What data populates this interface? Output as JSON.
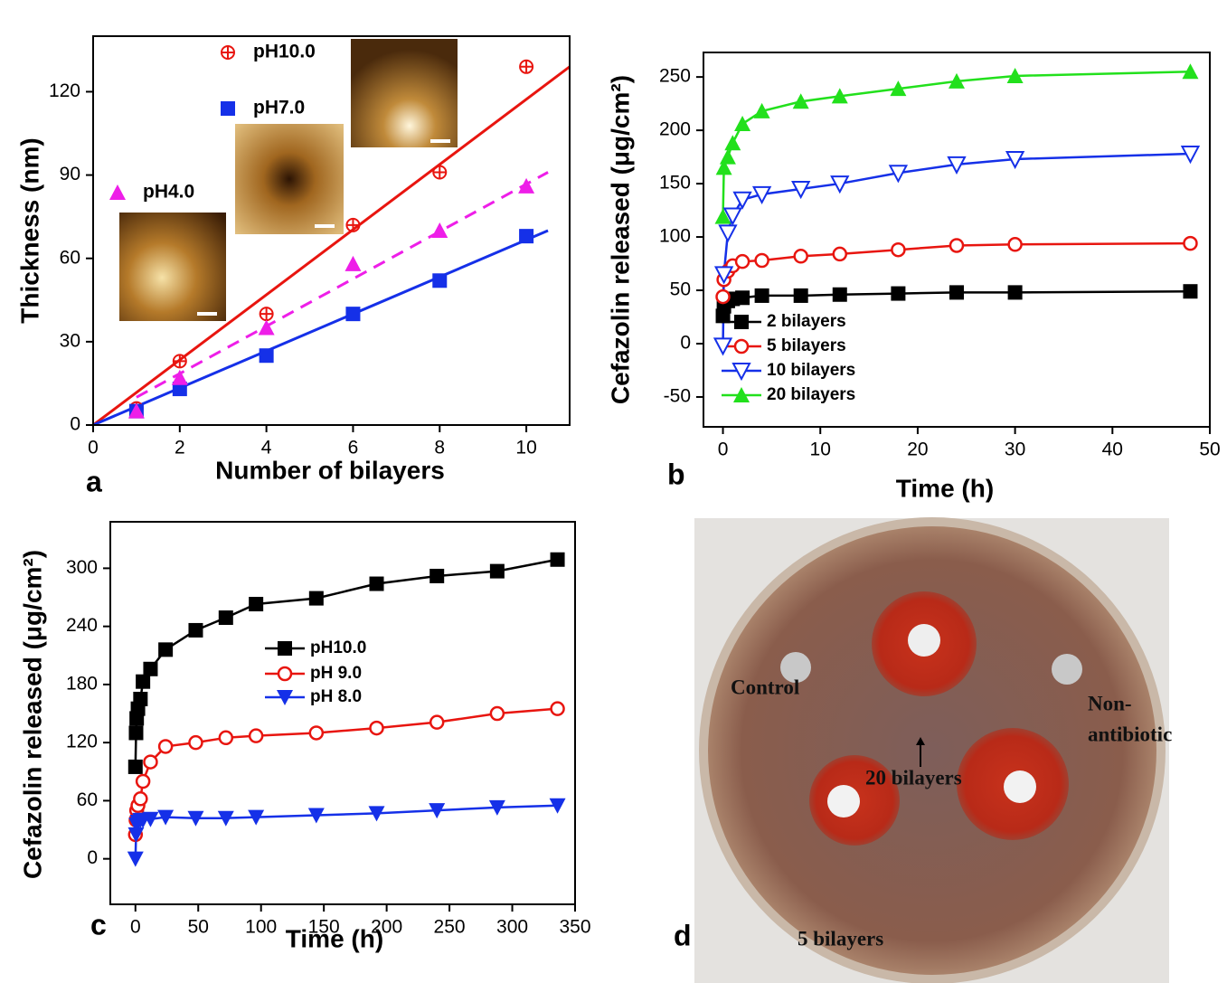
{
  "chart_data": [
    {
      "type": "scatter",
      "panel_label": "a",
      "x_label": "Number of bilayers",
      "y_label": "Thickness (nm)",
      "x": [
        1,
        2,
        4,
        6,
        8,
        10
      ],
      "xlim": [
        0,
        11
      ],
      "xticks": [
        0,
        2,
        4,
        6,
        8,
        10
      ],
      "ylim": [
        0,
        140
      ],
      "yticks": [
        0,
        30,
        60,
        90,
        120
      ],
      "series": [
        {
          "name": "pH10.0",
          "color": "#e8150f",
          "marker": "circle-cross",
          "values": [
            6,
            23,
            40,
            72,
            91,
            129
          ],
          "fit": {
            "x": [
              0,
              11
            ],
            "values": [
              0,
              129
            ],
            "dash": false
          }
        },
        {
          "name": "pH7.0",
          "color": "#1530e8",
          "marker": "square",
          "values": [
            5,
            13,
            25,
            40,
            52,
            68
          ],
          "fit": {
            "x": [
              0,
              10.5
            ],
            "values": [
              0,
              70
            ],
            "dash": false
          }
        },
        {
          "name": "pH4.0",
          "color": "#ee1ee8",
          "marker": "triangle",
          "values": [
            5,
            17,
            35,
            58,
            70,
            86
          ],
          "fit": {
            "x": [
              1,
              10.5
            ],
            "values": [
              10,
              91
            ],
            "dash": true
          }
        }
      ]
    },
    {
      "type": "line",
      "panel_label": "b",
      "x_label": "Time (h)",
      "y_label": "Cefazolin released (μg/cm²)",
      "x": [
        0,
        0.1,
        0.5,
        1,
        2,
        4,
        8,
        12,
        18,
        24,
        30,
        48
      ],
      "xlim": [
        -2,
        50
      ],
      "xticks": [
        0,
        10,
        20,
        30,
        40,
        50
      ],
      "ylim": [
        -78,
        273
      ],
      "yticks": [
        -50,
        0,
        50,
        100,
        150,
        200,
        250
      ],
      "series": [
        {
          "name": "2 bilayers",
          "color": "#000000",
          "marker": "square",
          "values": [
            26,
            35,
            40,
            42,
            43,
            45,
            45,
            46,
            47,
            48,
            48,
            49
          ]
        },
        {
          "name": "5 bilayers",
          "color": "#e8150f",
          "marker": "circle-open",
          "values": [
            44,
            60,
            68,
            73,
            77,
            78,
            82,
            84,
            88,
            92,
            93,
            94
          ]
        },
        {
          "name": "10 bilayers",
          "color": "#1530e8",
          "marker": "triangle-down-open",
          "values": [
            -2,
            65,
            104,
            120,
            135,
            140,
            145,
            150,
            160,
            168,
            173,
            178
          ]
        },
        {
          "name": "20 bilayers",
          "color": "#22e01c",
          "marker": "triangle",
          "values": [
            119,
            165,
            175,
            188,
            206,
            218,
            227,
            232,
            239,
            246,
            251,
            255
          ]
        }
      ]
    },
    {
      "type": "line",
      "panel_label": "c",
      "x_label": "Time (h)",
      "y_label": "Cefazolin released (μg/cm²)",
      "x": [
        0,
        0.5,
        1,
        2,
        4,
        6,
        12,
        24,
        48,
        72,
        96,
        144,
        192,
        240,
        288,
        336
      ],
      "xlim": [
        -20,
        350
      ],
      "xticks": [
        0,
        50,
        100,
        150,
        200,
        250,
        300,
        350
      ],
      "ylim": [
        -47,
        348
      ],
      "yticks": [
        0,
        60,
        120,
        180,
        240,
        300
      ],
      "series": [
        {
          "name": "pH10.0",
          "color": "#000000",
          "marker": "square",
          "values": [
            95,
            130,
            145,
            155,
            165,
            183,
            196,
            216,
            236,
            249,
            263,
            269,
            284,
            292,
            297,
            309
          ]
        },
        {
          "name": "pH 9.0",
          "color": "#e8150f",
          "marker": "circle-open",
          "values": [
            25,
            40,
            50,
            55,
            62,
            80,
            100,
            116,
            120,
            125,
            127,
            130,
            135,
            141,
            150,
            155
          ]
        },
        {
          "name": "pH 8.0",
          "color": "#1530e8",
          "marker": "triangle-down",
          "values": [
            0,
            25,
            35,
            38,
            40,
            40,
            41,
            43,
            42,
            42,
            43,
            45,
            47,
            50,
            53,
            55
          ]
        }
      ]
    }
  ],
  "photo": {
    "panel_label": "d",
    "control": "Control",
    "non_antibiotic": [
      "Non-",
      "antibiotic"
    ],
    "bilayers_20": "20 bilayers",
    "bilayers_5": "5 bilayers"
  }
}
